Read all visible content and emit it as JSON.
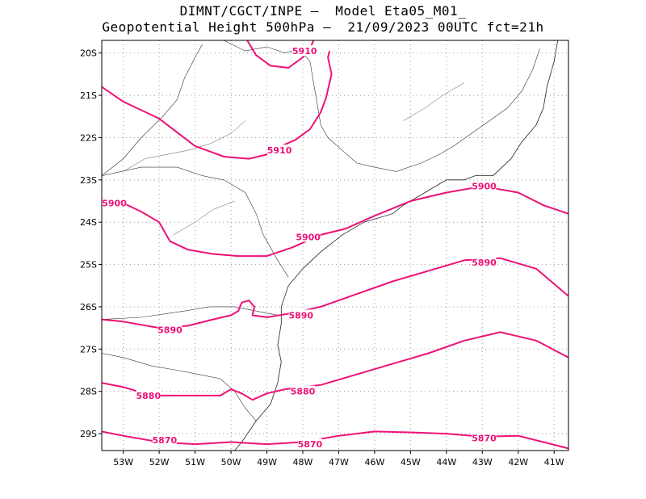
{
  "title": {
    "line1": "DIMNT/CGCT/INPE –  Model Eta05_M01_",
    "line2": "Geopotential Height 500hPa –  21/09/2023 00UTC fct=21h"
  },
  "axes": {
    "lat_labels": [
      "20S",
      "21S",
      "22S",
      "23S",
      "24S",
      "25S",
      "26S",
      "27S",
      "28S",
      "29S"
    ],
    "lon_labels": [
      "53W",
      "52W",
      "51W",
      "50W",
      "49W",
      "48W",
      "47W",
      "46W",
      "45W",
      "44W",
      "43W",
      "42W",
      "41W"
    ],
    "lat_values": [
      -20,
      -21,
      -22,
      -23,
      -24,
      -25,
      -26,
      -27,
      -28,
      -29
    ],
    "lon_values": [
      -53,
      -52,
      -51,
      -50,
      -49,
      -48,
      -47,
      -46,
      -45,
      -44,
      -43,
      -42,
      -41
    ],
    "lat_range": [
      -29.4,
      -19.7
    ],
    "lon_range": [
      -53.6,
      -40.6
    ]
  },
  "contour_color": "#ee1177",
  "contours": [
    {
      "value": "5910",
      "pts": [
        [
          -53.6,
          -20.8
        ],
        [
          -53.0,
          -21.15
        ],
        [
          -52.0,
          -21.55
        ],
        [
          -51.0,
          -22.2
        ],
        [
          -50.2,
          -22.45
        ],
        [
          -49.5,
          -22.5
        ],
        [
          -49.0,
          -22.4
        ],
        [
          -48.6,
          -22.2
        ],
        [
          -48.2,
          -22.05
        ],
        [
          -47.8,
          -21.8
        ],
        [
          -47.5,
          -21.4
        ],
        [
          -47.35,
          -21.05
        ],
        [
          -47.2,
          -20.5
        ],
        [
          -47.3,
          -20.1
        ],
        [
          -47.25,
          -19.95
        ]
      ],
      "labels": [
        {
          "text": "5910",
          "at": [
            -48.65,
            -22.3
          ]
        }
      ]
    },
    {
      "value": "5910",
      "pts": [
        [
          -49.55,
          -19.7
        ],
        [
          -49.3,
          -20.05
        ],
        [
          -48.9,
          -20.3
        ],
        [
          -48.4,
          -20.35
        ],
        [
          -48.0,
          -20.1
        ],
        [
          -47.8,
          -19.9
        ],
        [
          -47.7,
          -19.7
        ]
      ],
      "labels": [
        {
          "text": "5910",
          "at": [
            -47.95,
            -19.95
          ]
        }
      ]
    },
    {
      "value": "5900",
      "pts": [
        [
          -53.6,
          -23.6
        ],
        [
          -53.0,
          -23.55
        ],
        [
          -52.5,
          -23.75
        ],
        [
          -52.0,
          -24.0
        ],
        [
          -51.7,
          -24.45
        ],
        [
          -51.2,
          -24.65
        ],
        [
          -50.5,
          -24.75
        ],
        [
          -49.8,
          -24.8
        ],
        [
          -49.0,
          -24.8
        ],
        [
          -48.3,
          -24.6
        ],
        [
          -47.5,
          -24.3
        ],
        [
          -46.8,
          -24.15
        ],
        [
          -46.0,
          -23.85
        ],
        [
          -45.0,
          -23.5
        ],
        [
          -44.0,
          -23.3
        ],
        [
          -43.0,
          -23.15
        ],
        [
          -42.0,
          -23.3
        ],
        [
          -41.3,
          -23.6
        ],
        [
          -40.6,
          -23.8
        ]
      ],
      "labels": [
        {
          "text": "5900",
          "at": [
            -53.25,
            -23.55
          ]
        },
        {
          "text": "5900",
          "at": [
            -47.85,
            -24.35
          ]
        },
        {
          "text": "5900",
          "at": [
            -42.95,
            -23.15
          ]
        }
      ]
    },
    {
      "value": "5890",
      "pts": [
        [
          -53.6,
          -26.3
        ],
        [
          -53.0,
          -26.35
        ],
        [
          -52.0,
          -26.5
        ],
        [
          -51.2,
          -26.45
        ],
        [
          -50.5,
          -26.3
        ],
        [
          -50.0,
          -26.2
        ],
        [
          -49.8,
          -26.1
        ],
        [
          -49.7,
          -25.9
        ],
        [
          -49.5,
          -25.85
        ],
        [
          -49.35,
          -26.0
        ],
        [
          -49.4,
          -26.2
        ],
        [
          -49.0,
          -26.25
        ],
        [
          -48.3,
          -26.15
        ],
        [
          -47.5,
          -26.0
        ],
        [
          -46.5,
          -25.7
        ],
        [
          -45.5,
          -25.4
        ],
        [
          -44.5,
          -25.15
        ],
        [
          -43.5,
          -24.9
        ],
        [
          -42.5,
          -24.85
        ],
        [
          -41.5,
          -25.1
        ],
        [
          -40.6,
          -25.75
        ]
      ],
      "labels": [
        {
          "text": "5890",
          "at": [
            -51.7,
            -26.55
          ]
        },
        {
          "text": "5890",
          "at": [
            -48.05,
            -26.2
          ]
        },
        {
          "text": "5890",
          "at": [
            -42.95,
            -24.95
          ]
        }
      ]
    },
    {
      "value": "5880",
      "pts": [
        [
          -53.6,
          -27.8
        ],
        [
          -53.0,
          -27.9
        ],
        [
          -52.2,
          -28.1
        ],
        [
          -51.0,
          -28.1
        ],
        [
          -50.3,
          -28.1
        ],
        [
          -50.0,
          -27.95
        ],
        [
          -49.7,
          -28.05
        ],
        [
          -49.4,
          -28.2
        ],
        [
          -49.0,
          -28.05
        ],
        [
          -48.5,
          -27.95
        ],
        [
          -47.5,
          -27.85
        ],
        [
          -46.5,
          -27.6
        ],
        [
          -45.5,
          -27.35
        ],
        [
          -44.5,
          -27.1
        ],
        [
          -43.5,
          -26.8
        ],
        [
          -42.5,
          -26.6
        ],
        [
          -41.5,
          -26.8
        ],
        [
          -40.6,
          -27.2
        ]
      ],
      "labels": [
        {
          "text": "5880",
          "at": [
            -52.3,
            -28.1
          ]
        },
        {
          "text": "5880",
          "at": [
            -48.0,
            -28.0
          ]
        }
      ]
    },
    {
      "value": "5870",
      "pts": [
        [
          -53.6,
          -28.95
        ],
        [
          -53.0,
          -29.05
        ],
        [
          -52.0,
          -29.2
        ],
        [
          -51.0,
          -29.25
        ],
        [
          -50.0,
          -29.2
        ],
        [
          -49.0,
          -29.25
        ],
        [
          -48.0,
          -29.2
        ],
        [
          -47.0,
          -29.05
        ],
        [
          -46.0,
          -28.95
        ],
        [
          -45.0,
          -28.97
        ],
        [
          -44.0,
          -29.0
        ],
        [
          -43.0,
          -29.07
        ],
        [
          -42.0,
          -29.05
        ],
        [
          -41.3,
          -29.2
        ],
        [
          -40.6,
          -29.35
        ]
      ],
      "labels": [
        {
          "text": "5870",
          "at": [
            -51.85,
            -29.15
          ]
        },
        {
          "text": "5870",
          "at": [
            -47.8,
            -29.25
          ]
        },
        {
          "text": "5870",
          "at": [
            -42.95,
            -29.1
          ]
        }
      ]
    }
  ],
  "coastline": [
    [
      -40.9,
      -19.7
    ],
    [
      -41.0,
      -20.2
    ],
    [
      -41.2,
      -20.8
    ],
    [
      -41.3,
      -21.3
    ],
    [
      -41.5,
      -21.7
    ],
    [
      -41.9,
      -22.1
    ],
    [
      -42.2,
      -22.5
    ],
    [
      -42.7,
      -22.9
    ],
    [
      -43.2,
      -22.9
    ],
    [
      -43.5,
      -23.0
    ],
    [
      -44.0,
      -23.0
    ],
    [
      -44.6,
      -23.3
    ],
    [
      -45.2,
      -23.6
    ],
    [
      -45.5,
      -23.8
    ],
    [
      -46.3,
      -24.0
    ],
    [
      -46.9,
      -24.3
    ],
    [
      -47.5,
      -24.7
    ],
    [
      -48.0,
      -25.1
    ],
    [
      -48.4,
      -25.5
    ],
    [
      -48.6,
      -26.0
    ],
    [
      -48.6,
      -26.4
    ],
    [
      -48.7,
      -26.9
    ],
    [
      -48.6,
      -27.3
    ],
    [
      -48.7,
      -27.8
    ],
    [
      -48.9,
      -28.3
    ],
    [
      -49.3,
      -28.7
    ],
    [
      -49.7,
      -29.2
    ],
    [
      -49.9,
      -29.4
    ]
  ],
  "borders": [
    [
      [
        -53.6,
        -22.9
      ],
      [
        -53.0,
        -22.5
      ],
      [
        -52.5,
        -22.0
      ],
      [
        -51.9,
        -21.5
      ],
      [
        -51.5,
        -21.1
      ],
      [
        -51.3,
        -20.6
      ],
      [
        -51.0,
        -20.1
      ],
      [
        -50.8,
        -19.8
      ]
    ],
    [
      [
        -50.2,
        -19.7
      ],
      [
        -49.6,
        -19.95
      ],
      [
        -49.0,
        -19.85
      ],
      [
        -48.5,
        -20.0
      ],
      [
        -48.1,
        -19.9
      ],
      [
        -47.8,
        -20.2
      ],
      [
        -47.7,
        -20.7
      ],
      [
        -47.6,
        -21.2
      ],
      [
        -47.5,
        -21.7
      ],
      [
        -47.3,
        -22.0
      ],
      [
        -46.9,
        -22.3
      ],
      [
        -46.5,
        -22.6
      ],
      [
        -46.0,
        -22.7
      ],
      [
        -45.4,
        -22.8
      ],
      [
        -44.7,
        -22.6
      ],
      [
        -44.2,
        -22.4
      ],
      [
        -43.8,
        -22.2
      ],
      [
        -43.3,
        -21.9
      ],
      [
        -42.8,
        -21.6
      ],
      [
        -42.3,
        -21.3
      ],
      [
        -41.9,
        -20.9
      ],
      [
        -41.6,
        -20.4
      ],
      [
        -41.4,
        -19.9
      ]
    ],
    [
      [
        -53.6,
        -22.9
      ],
      [
        -52.5,
        -22.7
      ],
      [
        -51.5,
        -22.7
      ],
      [
        -50.8,
        -22.9
      ],
      [
        -50.2,
        -23.0
      ],
      [
        -49.6,
        -23.3
      ],
      [
        -49.3,
        -23.8
      ],
      [
        -49.1,
        -24.3
      ],
      [
        -48.7,
        -24.9
      ],
      [
        -48.4,
        -25.3
      ]
    ],
    [
      [
        -53.6,
        -26.3
      ],
      [
        -52.5,
        -26.25
      ],
      [
        -51.3,
        -26.1
      ],
      [
        -50.6,
        -26.0
      ],
      [
        -49.9,
        -26.0
      ],
      [
        -49.3,
        -26.1
      ],
      [
        -48.7,
        -26.2
      ]
    ],
    [
      [
        -53.6,
        -27.1
      ],
      [
        -53.0,
        -27.2
      ],
      [
        -52.2,
        -27.4
      ],
      [
        -51.5,
        -27.5
      ],
      [
        -50.9,
        -27.6
      ],
      [
        -50.3,
        -27.7
      ],
      [
        -49.9,
        -28.0
      ],
      [
        -49.6,
        -28.4
      ],
      [
        -49.3,
        -28.7
      ]
    ]
  ],
  "rivers": [
    [
      [
        -53.0,
        -22.8
      ],
      [
        -52.4,
        -22.5
      ],
      [
        -51.8,
        -22.4
      ],
      [
        -51.2,
        -22.3
      ],
      [
        -50.6,
        -22.15
      ],
      [
        -50.0,
        -21.9
      ],
      [
        -49.6,
        -21.6
      ]
    ],
    [
      [
        -51.6,
        -24.3
      ],
      [
        -51.0,
        -24.0
      ],
      [
        -50.5,
        -23.7
      ],
      [
        -49.9,
        -23.5
      ]
    ],
    [
      [
        -45.2,
        -21.6
      ],
      [
        -44.6,
        -21.3
      ],
      [
        -44.1,
        -21.0
      ],
      [
        -43.5,
        -20.7
      ]
    ]
  ]
}
